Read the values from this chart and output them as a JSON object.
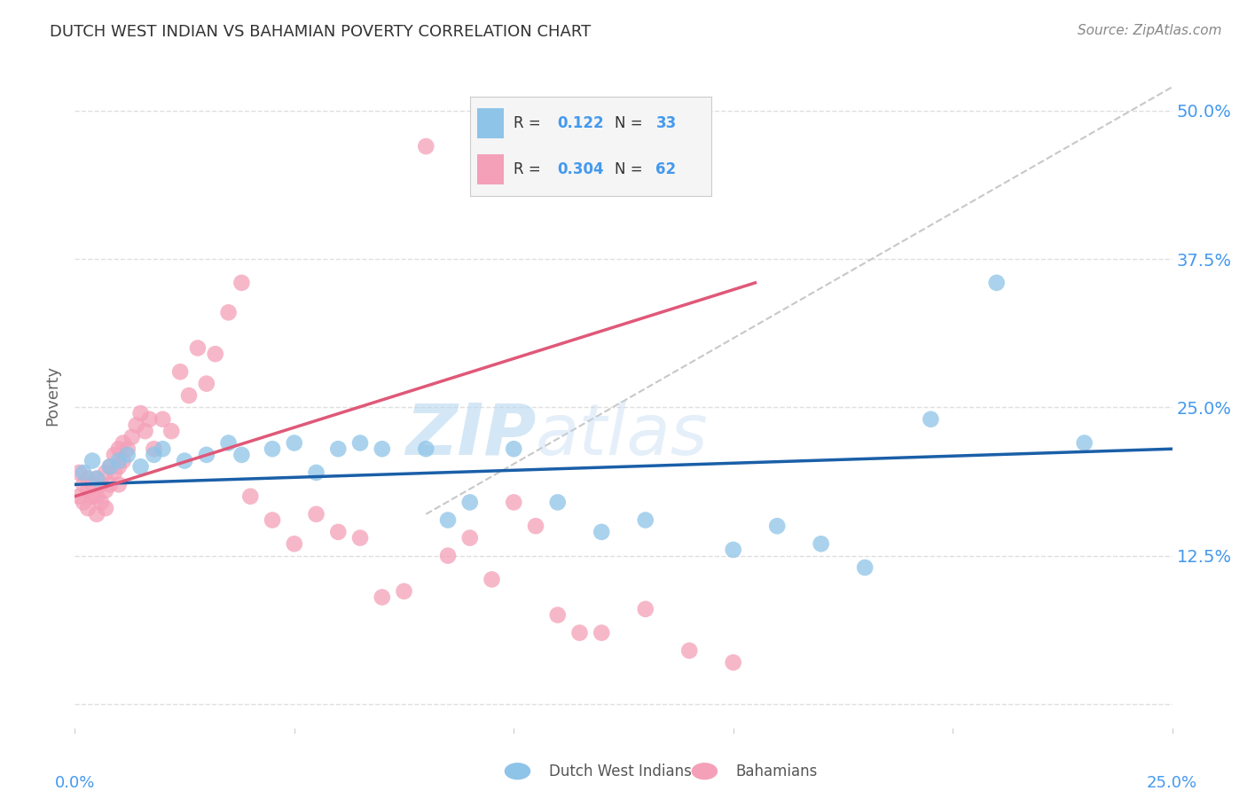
{
  "title": "DUTCH WEST INDIAN VS BAHAMIAN POVERTY CORRELATION CHART",
  "source": "Source: ZipAtlas.com",
  "ylabel": "Poverty",
  "yticks": [
    0.0,
    0.125,
    0.25,
    0.375,
    0.5
  ],
  "ytick_labels": [
    "",
    "12.5%",
    "25.0%",
    "37.5%",
    "50.0%"
  ],
  "xlim": [
    0.0,
    0.25
  ],
  "ylim": [
    -0.02,
    0.54
  ],
  "legend_r_blue": "0.122",
  "legend_n_blue": "33",
  "legend_r_pink": "0.304",
  "legend_n_pink": "62",
  "blue_color": "#8ec4e8",
  "pink_color": "#f4a0b8",
  "blue_line_color": "#1a5fa8",
  "pink_line_color": "#e05878",
  "dashed_line_color": "#c8c8c8",
  "watermark_zip": "ZIP",
  "watermark_atlas": "atlas",
  "blue_scatter_x": [
    0.002,
    0.004,
    0.005,
    0.008,
    0.01,
    0.012,
    0.015,
    0.018,
    0.02,
    0.025,
    0.03,
    0.035,
    0.038,
    0.045,
    0.05,
    0.055,
    0.06,
    0.065,
    0.07,
    0.08,
    0.085,
    0.09,
    0.1,
    0.11,
    0.12,
    0.13,
    0.15,
    0.16,
    0.17,
    0.18,
    0.195,
    0.21,
    0.23
  ],
  "blue_scatter_y": [
    0.195,
    0.205,
    0.19,
    0.2,
    0.205,
    0.21,
    0.2,
    0.21,
    0.215,
    0.205,
    0.21,
    0.22,
    0.21,
    0.215,
    0.22,
    0.195,
    0.215,
    0.22,
    0.215,
    0.215,
    0.155,
    0.17,
    0.215,
    0.17,
    0.145,
    0.155,
    0.13,
    0.15,
    0.135,
    0.115,
    0.24,
    0.355,
    0.22
  ],
  "pink_scatter_x": [
    0.001,
    0.001,
    0.002,
    0.002,
    0.003,
    0.003,
    0.003,
    0.004,
    0.004,
    0.005,
    0.005,
    0.005,
    0.006,
    0.006,
    0.007,
    0.007,
    0.007,
    0.008,
    0.008,
    0.009,
    0.009,
    0.01,
    0.01,
    0.01,
    0.011,
    0.011,
    0.012,
    0.013,
    0.014,
    0.015,
    0.016,
    0.017,
    0.018,
    0.02,
    0.022,
    0.024,
    0.026,
    0.028,
    0.03,
    0.032,
    0.035,
    0.038,
    0.04,
    0.045,
    0.05,
    0.055,
    0.06,
    0.065,
    0.07,
    0.075,
    0.08,
    0.085,
    0.09,
    0.095,
    0.1,
    0.105,
    0.11,
    0.115,
    0.12,
    0.13,
    0.14,
    0.15
  ],
  "pink_scatter_y": [
    0.195,
    0.175,
    0.185,
    0.17,
    0.19,
    0.18,
    0.165,
    0.185,
    0.175,
    0.19,
    0.175,
    0.16,
    0.185,
    0.17,
    0.195,
    0.18,
    0.165,
    0.2,
    0.185,
    0.21,
    0.195,
    0.215,
    0.2,
    0.185,
    0.22,
    0.205,
    0.215,
    0.225,
    0.235,
    0.245,
    0.23,
    0.24,
    0.215,
    0.24,
    0.23,
    0.28,
    0.26,
    0.3,
    0.27,
    0.295,
    0.33,
    0.355,
    0.175,
    0.155,
    0.135,
    0.16,
    0.145,
    0.14,
    0.09,
    0.095,
    0.47,
    0.125,
    0.14,
    0.105,
    0.17,
    0.15,
    0.075,
    0.06,
    0.06,
    0.08,
    0.045,
    0.035
  ],
  "background_color": "#ffffff",
  "grid_color": "#e0e0e0"
}
